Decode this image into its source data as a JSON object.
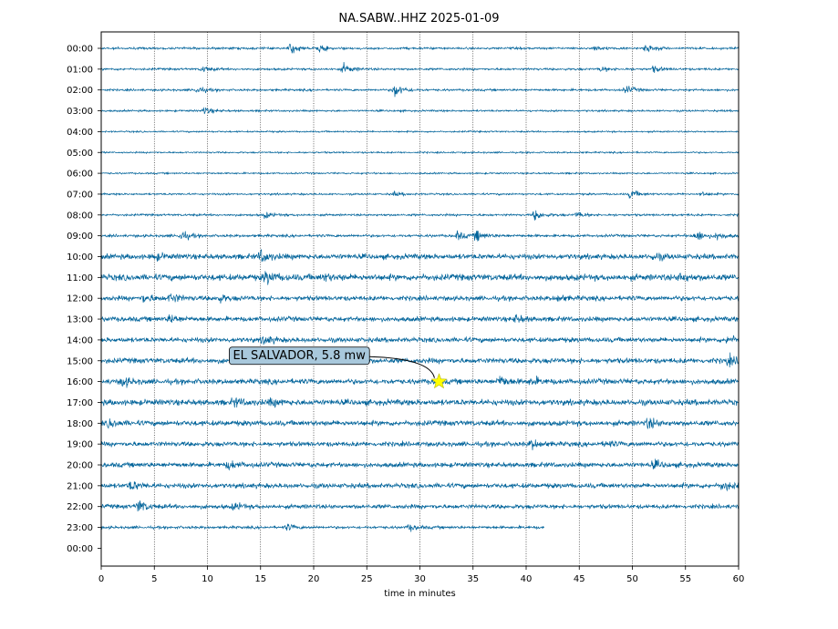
{
  "chart_data": {
    "type": "line",
    "title": "NA.SABW..HHZ 2025-01-09",
    "xlabel": "time in minutes",
    "ylabel": "",
    "xlim": [
      0,
      60
    ],
    "x_ticks": [
      0,
      5,
      10,
      15,
      20,
      25,
      30,
      35,
      40,
      45,
      50,
      55,
      60
    ],
    "y_tick_labels": [
      "00:00",
      "01:00",
      "02:00",
      "03:00",
      "04:00",
      "05:00",
      "06:00",
      "07:00",
      "08:00",
      "09:00",
      "10:00",
      "11:00",
      "12:00",
      "13:00",
      "14:00",
      "15:00",
      "16:00",
      "17:00",
      "18:00",
      "19:00",
      "20:00",
      "21:00",
      "22:00",
      "23:00",
      "00:00"
    ],
    "grid": "vertical dotted lines at x ticks",
    "trace_color": "#00639a",
    "rows": [
      {
        "hour": "00:00",
        "noise": 0.4,
        "bursts": [
          {
            "t": 17.8,
            "amp": 2.2
          },
          {
            "t": 20.5,
            "amp": 1.3
          },
          {
            "t": 51.3,
            "amp": 1.8
          },
          {
            "t": 46.5,
            "amp": 1.0
          }
        ]
      },
      {
        "hour": "01:00",
        "noise": 0.4,
        "bursts": [
          {
            "t": 9.5,
            "amp": 1.2
          },
          {
            "t": 22.8,
            "amp": 1.8
          },
          {
            "t": 47.0,
            "amp": 1.0
          },
          {
            "t": 52.0,
            "amp": 1.2
          }
        ]
      },
      {
        "hour": "02:00",
        "noise": 0.4,
        "bursts": [
          {
            "t": 9.0,
            "amp": 1.4
          },
          {
            "t": 27.6,
            "amp": 2.8
          },
          {
            "t": 49.4,
            "amp": 1.6
          }
        ]
      },
      {
        "hour": "03:00",
        "noise": 0.35,
        "bursts": [
          {
            "t": 9.7,
            "amp": 1.4
          }
        ]
      },
      {
        "hour": "04:00",
        "noise": 0.3,
        "bursts": []
      },
      {
        "hour": "05:00",
        "noise": 0.3,
        "bursts": []
      },
      {
        "hour": "06:00",
        "noise": 0.3,
        "bursts": []
      },
      {
        "hour": "07:00",
        "noise": 0.35,
        "bursts": [
          {
            "t": 27.5,
            "amp": 0.8
          },
          {
            "t": 49.8,
            "amp": 1.8
          },
          {
            "t": 56.5,
            "amp": 0.8
          }
        ]
      },
      {
        "hour": "08:00",
        "noise": 0.4,
        "bursts": [
          {
            "t": 15.4,
            "amp": 1.2
          },
          {
            "t": 40.8,
            "amp": 2.0
          },
          {
            "t": 44.8,
            "amp": 1.2
          }
        ]
      },
      {
        "hour": "09:00",
        "noise": 0.5,
        "bursts": [
          {
            "t": 7.5,
            "amp": 2.0
          },
          {
            "t": 33.5,
            "amp": 1.6
          },
          {
            "t": 35.3,
            "amp": 2.0
          },
          {
            "t": 56.0,
            "amp": 2.4
          },
          {
            "t": 58.0,
            "amp": 1.4
          }
        ]
      },
      {
        "hour": "10:00",
        "noise": 1.0,
        "bursts": [
          {
            "t": 5.0,
            "amp": 1.2
          },
          {
            "t": 15.0,
            "amp": 2.4
          },
          {
            "t": 52.0,
            "amp": 1.2
          }
        ]
      },
      {
        "hour": "11:00",
        "noise": 1.2,
        "bursts": [
          {
            "t": 15.5,
            "amp": 2.4
          },
          {
            "t": 21.0,
            "amp": 1.2
          },
          {
            "t": 54.5,
            "amp": 1.4
          }
        ]
      },
      {
        "hour": "12:00",
        "noise": 0.9,
        "bursts": [
          {
            "t": 4.0,
            "amp": 1.6
          },
          {
            "t": 6.5,
            "amp": 1.8
          },
          {
            "t": 11.0,
            "amp": 1.4
          },
          {
            "t": 43.0,
            "amp": 1.0
          }
        ]
      },
      {
        "hour": "13:00",
        "noise": 0.9,
        "bursts": [
          {
            "t": 6.5,
            "amp": 1.6
          },
          {
            "t": 39.0,
            "amp": 1.4
          }
        ]
      },
      {
        "hour": "14:00",
        "noise": 0.9,
        "bursts": [
          {
            "t": 15.3,
            "amp": 1.8
          },
          {
            "t": 59.0,
            "amp": 1.6
          }
        ]
      },
      {
        "hour": "15:00",
        "noise": 1.0,
        "bursts": [
          {
            "t": 59.0,
            "amp": 1.6
          }
        ]
      },
      {
        "hour": "16:00",
        "noise": 1.0,
        "bursts": [
          {
            "t": 2.0,
            "amp": 1.8
          },
          {
            "t": 37.5,
            "amp": 2.2
          },
          {
            "t": 40.5,
            "amp": 1.4
          }
        ]
      },
      {
        "hour": "17:00",
        "noise": 1.1,
        "bursts": [
          {
            "t": 12.5,
            "amp": 1.4
          },
          {
            "t": 16.0,
            "amp": 1.2
          }
        ]
      },
      {
        "hour": "18:00",
        "noise": 1.0,
        "bursts": [
          {
            "t": 0.8,
            "amp": 1.4
          },
          {
            "t": 51.5,
            "amp": 2.0
          }
        ]
      },
      {
        "hour": "19:00",
        "noise": 0.9,
        "bursts": [
          {
            "t": 40.5,
            "amp": 1.6
          },
          {
            "t": 47.5,
            "amp": 1.0
          }
        ]
      },
      {
        "hour": "20:00",
        "noise": 0.9,
        "bursts": [
          {
            "t": 12.0,
            "amp": 1.6
          },
          {
            "t": 52.0,
            "amp": 1.4
          }
        ]
      },
      {
        "hour": "21:00",
        "noise": 0.9,
        "bursts": [
          {
            "t": 2.8,
            "amp": 1.8
          },
          {
            "t": 58.5,
            "amp": 1.8
          }
        ]
      },
      {
        "hour": "22:00",
        "noise": 0.8,
        "bursts": [
          {
            "t": 3.5,
            "amp": 2.4
          },
          {
            "t": 12.5,
            "amp": 1.2
          }
        ]
      },
      {
        "hour": "23:00",
        "noise": 0.5,
        "bursts": [
          {
            "t": 17.5,
            "amp": 1.2
          },
          {
            "t": 29.0,
            "amp": 1.2
          }
        ],
        "end_minute": 41.7
      }
    ],
    "annotation": {
      "text": "EL SALVADOR, 5.8 mw",
      "marker": "star",
      "marker_color": "#ffff00",
      "x_minute": 31.8,
      "hour_row": "16:00"
    }
  }
}
